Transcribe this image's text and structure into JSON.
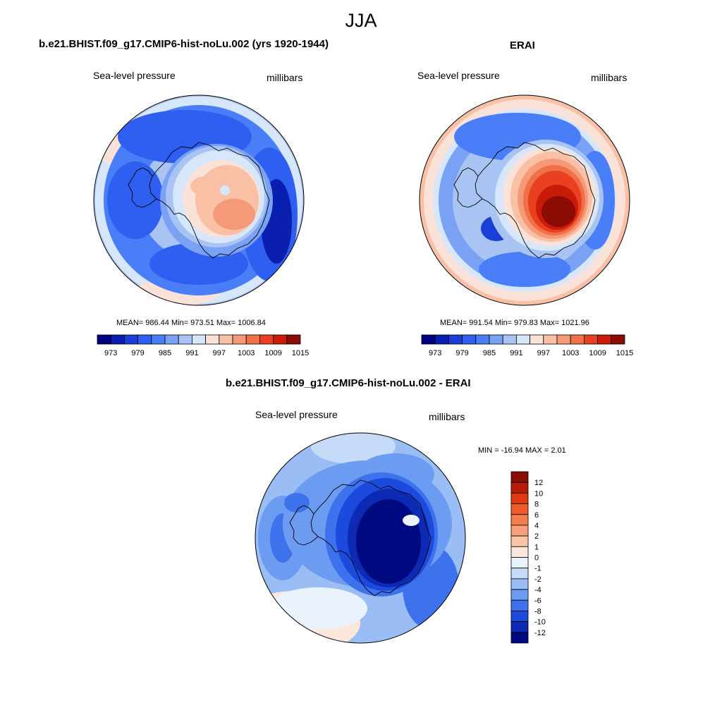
{
  "page": {
    "title": "JJA"
  },
  "panels": [
    {
      "id": "model",
      "title": "b.e21.BHIST.f09_g17.CMIP6-hist-noLu.002 (yrs 1920-1944)",
      "left_label": "Sea-level pressure",
      "right_label": "millibars",
      "stats": "MEAN= 986.44  Min= 973.51  Max= 1006.84",
      "colorbar_ticks": [
        "973",
        "979",
        "985",
        "991",
        "997",
        "1003",
        "1009",
        "1015"
      ]
    },
    {
      "id": "obs",
      "title": "ERAI",
      "left_label": "Sea-level pressure",
      "right_label": "millibars",
      "stats": "MEAN= 991.54  Min= 979.83  Max= 1021.96",
      "colorbar_ticks": [
        "973",
        "979",
        "985",
        "991",
        "997",
        "1003",
        "1009",
        "1015"
      ]
    },
    {
      "id": "diff",
      "title": "b.e21.BHIST.f09_g17.CMIP6-hist-noLu.002 - ERAI",
      "left_label": "Sea-level pressure",
      "right_label": "millibars",
      "stats": "MIN = -16.94 MAX =   2.01",
      "colorbar_ticks": [
        "12",
        "10",
        "8",
        "6",
        "4",
        "2",
        "1",
        "0",
        "-1",
        "-2",
        "-4",
        "-6",
        "-8",
        "-10",
        "-12"
      ]
    }
  ],
  "colors": {
    "slp_scale": [
      "#000080",
      "#0a1fb0",
      "#1a3fd6",
      "#2e5ff0",
      "#4a7ef8",
      "#7aa2f4",
      "#a9c4f2",
      "#d6e6fb",
      "#fbe2d8",
      "#f9c0a6",
      "#f59a78",
      "#f07048",
      "#e84020",
      "#c81c08",
      "#8a0c04"
    ],
    "diff_scale": [
      "#8a0c04",
      "#b81c08",
      "#e03a10",
      "#f25a28",
      "#f57e4e",
      "#f8a07a",
      "#fbc4a6",
      "#fde6da",
      "#eaf2fc",
      "#c6dbf8",
      "#99bdf4",
      "#6c9cf2",
      "#3e72ec",
      "#1c4adc",
      "#0c2ab4",
      "#000a80"
    ],
    "coast": "#000000"
  }
}
